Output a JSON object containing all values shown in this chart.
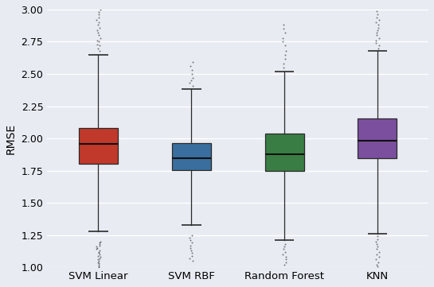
{
  "categories": [
    "SVM Linear",
    "SVM RBF",
    "Random Forest",
    "KNN"
  ],
  "colors": [
    "#c0392b",
    "#3a6e9e",
    "#3a7d44",
    "#7b4f9e"
  ],
  "ylabel": "RMSE",
  "ylim": [
    1.0,
    3.0
  ],
  "yticks": [
    1.0,
    1.25,
    1.5,
    1.75,
    2.0,
    2.25,
    2.5,
    2.75,
    3.0
  ],
  "background_color": "#e8ebf2",
  "grid_color": "#ffffff",
  "box_stats": [
    {
      "med": 1.955,
      "q1": 1.805,
      "q3": 2.08,
      "whislo": 1.28,
      "whishi": 2.65,
      "fliers_low": [
        1.0,
        1.01,
        1.02,
        1.03,
        1.04,
        1.05,
        1.06,
        1.07,
        1.08,
        1.09,
        1.1,
        1.11,
        1.12,
        1.13,
        1.14,
        1.15,
        1.16,
        1.17,
        1.18,
        1.19,
        1.2
      ],
      "fliers_high": [
        2.68,
        2.7,
        2.72,
        2.73,
        2.75,
        2.76,
        2.78,
        2.8,
        2.82,
        2.84,
        2.86,
        2.88,
        2.9,
        2.92,
        2.94,
        2.96,
        2.98,
        3.0,
        3.01
      ]
    },
    {
      "med": 1.845,
      "q1": 1.755,
      "q3": 1.965,
      "whislo": 1.33,
      "whishi": 2.38,
      "fliers_low": [
        1.05,
        1.07,
        1.09,
        1.11,
        1.13,
        1.15,
        1.17,
        1.19,
        1.21,
        1.23,
        1.25
      ],
      "fliers_high": [
        2.41,
        2.43,
        2.45,
        2.47,
        2.5,
        2.53,
        2.56,
        2.59
      ]
    },
    {
      "med": 1.875,
      "q1": 1.745,
      "q3": 2.04,
      "whislo": 1.21,
      "whishi": 2.52,
      "fliers_low": [
        1.02,
        1.04,
        1.06,
        1.08,
        1.1,
        1.12,
        1.14,
        1.16,
        1.18
      ],
      "fliers_high": [
        2.55,
        2.58,
        2.62,
        2.65,
        2.68,
        2.72,
        2.75,
        2.78,
        2.82,
        2.85,
        2.88
      ]
    },
    {
      "med": 1.985,
      "q1": 1.845,
      "q3": 2.155,
      "whislo": 1.26,
      "whishi": 2.68,
      "fliers_low": [
        1.01,
        1.02,
        1.04,
        1.06,
        1.08,
        1.1,
        1.12,
        1.14,
        1.16,
        1.18,
        1.2,
        1.22,
        1.24
      ],
      "fliers_high": [
        2.7,
        2.72,
        2.74,
        2.76,
        2.78,
        2.8,
        2.82,
        2.84,
        2.86,
        2.88,
        2.9,
        2.92,
        2.94,
        2.96,
        2.99,
        3.01
      ]
    }
  ]
}
